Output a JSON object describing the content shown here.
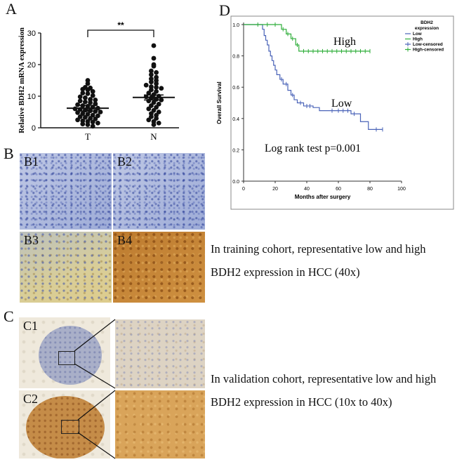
{
  "panels": {
    "A": "A",
    "B": "B",
    "C": "C",
    "D": "D"
  },
  "panel_b": {
    "tiles": [
      "B1",
      "B2",
      "B3",
      "B4"
    ],
    "caption_line1": "In training cohort, representative low and high",
    "caption_line2": "BDH2 expression in HCC  (40x)"
  },
  "panel_c": {
    "tiles": [
      "C1",
      "C2"
    ],
    "caption_line1": "In validation cohort, representative low and high",
    "caption_line2": "BDH2 expression in HCC  (10x to 40x)"
  },
  "colors": {
    "dot": "#111111",
    "low_line": "#4a63b8",
    "high_line": "#2fae3a"
  },
  "chart_data": [
    {
      "type": "scatter",
      "panel": "A",
      "ylabel": "Relative BDH2 mRNA expression",
      "categories": [
        "T",
        "N"
      ],
      "ylim": [
        0,
        30
      ],
      "yticks": [
        0,
        10,
        20,
        30
      ],
      "significance": "**",
      "series": [
        {
          "name": "T",
          "mean": 6.2,
          "sem_low": 5.3,
          "sem_high": 7.1,
          "values": [
            15,
            14,
            12.8,
            12.6,
            12.2,
            12,
            11.5,
            11,
            10.8,
            10.2,
            9.8,
            9.5,
            9,
            8.8,
            8.5,
            8.2,
            8,
            7.6,
            7.3,
            7,
            6.8,
            6.5,
            6.2,
            6,
            5.8,
            5.6,
            5.4,
            5.2,
            5,
            4.8,
            4.5,
            4.3,
            4,
            3.8,
            3.5,
            3.3,
            3,
            2.8,
            2.5,
            2.2,
            2,
            1.8,
            1.5,
            1.2,
            1,
            0.5
          ]
        },
        {
          "name": "N",
          "mean": 9.6,
          "sem_low": 8.8,
          "sem_high": 10.4,
          "values": [
            26,
            22,
            20,
            19.5,
            18,
            17.5,
            16.8,
            16,
            15.5,
            15,
            14.5,
            14,
            13.5,
            13,
            12.8,
            12.5,
            12,
            11.5,
            11,
            10.5,
            10,
            9.8,
            9.5,
            9,
            8.8,
            8.5,
            8,
            7.5,
            7,
            6.5,
            6,
            5.5,
            5,
            4.5,
            4,
            3.5,
            3,
            2.5,
            2,
            1.5,
            1
          ]
        }
      ]
    },
    {
      "type": "line",
      "panel": "D",
      "xlabel": "Months after surgery",
      "ylabel": "Overall Survival",
      "xlim": [
        0,
        100
      ],
      "ylim": [
        0,
        1.0
      ],
      "xticks": [
        0,
        20,
        40,
        60,
        80,
        100
      ],
      "yticks": [
        "0.0",
        "0.2",
        "0.4",
        "0.6",
        "0.8",
        "1.0"
      ],
      "legend_title": "BDH2\nexpression",
      "legend": [
        "Low",
        "High",
        "Low-censored",
        "High-censored"
      ],
      "legend_position": "top-right",
      "annotations": {
        "high": "High",
        "low": "Low",
        "test": "Log rank test p=0.001"
      },
      "series": [
        {
          "name": "Low",
          "steps": [
            [
              0,
              1.0
            ],
            [
              10,
              1.0
            ],
            [
              12,
              0.97
            ],
            [
              13,
              0.93
            ],
            [
              14,
              0.9
            ],
            [
              15,
              0.87
            ],
            [
              16,
              0.83
            ],
            [
              17,
              0.8
            ],
            [
              18,
              0.77
            ],
            [
              19,
              0.74
            ],
            [
              20,
              0.71
            ],
            [
              21,
              0.68
            ],
            [
              23,
              0.65
            ],
            [
              25,
              0.62
            ],
            [
              28,
              0.58
            ],
            [
              30,
              0.55
            ],
            [
              32,
              0.52
            ],
            [
              34,
              0.5
            ],
            [
              38,
              0.48
            ],
            [
              44,
              0.47
            ],
            [
              48,
              0.45
            ],
            [
              68,
              0.43
            ],
            [
              74,
              0.38
            ],
            [
              79,
              0.33
            ],
            [
              88,
              0.33
            ]
          ],
          "censored": [
            [
              24,
              0.65
            ],
            [
              27,
              0.62
            ],
            [
              31,
              0.55
            ],
            [
              36,
              0.5
            ],
            [
              40,
              0.48
            ],
            [
              42,
              0.48
            ],
            [
              56,
              0.45
            ],
            [
              60,
              0.45
            ],
            [
              63,
              0.45
            ],
            [
              66,
              0.45
            ],
            [
              70,
              0.43
            ],
            [
              84,
              0.33
            ],
            [
              88,
              0.33
            ]
          ]
        },
        {
          "name": "High",
          "steps": [
            [
              0,
              1.0
            ],
            [
              22,
              1.0
            ],
            [
              24,
              0.97
            ],
            [
              27,
              0.94
            ],
            [
              30,
              0.91
            ],
            [
              33,
              0.87
            ],
            [
              35,
              0.83
            ],
            [
              80,
              0.83
            ]
          ],
          "censored": [
            [
              9,
              1.0
            ],
            [
              15,
              1.0
            ],
            [
              20,
              1.0
            ],
            [
              25,
              0.97
            ],
            [
              28,
              0.94
            ],
            [
              31,
              0.91
            ],
            [
              34,
              0.87
            ],
            [
              38,
              0.83
            ],
            [
              41,
              0.83
            ],
            [
              44,
              0.83
            ],
            [
              47,
              0.83
            ],
            [
              50,
              0.83
            ],
            [
              53,
              0.83
            ],
            [
              56,
              0.83
            ],
            [
              59,
              0.83
            ],
            [
              62,
              0.83
            ],
            [
              65,
              0.83
            ],
            [
              68,
              0.83
            ],
            [
              71,
              0.83
            ],
            [
              74,
              0.83
            ],
            [
              77,
              0.83
            ],
            [
              80,
              0.83
            ]
          ]
        }
      ]
    }
  ]
}
